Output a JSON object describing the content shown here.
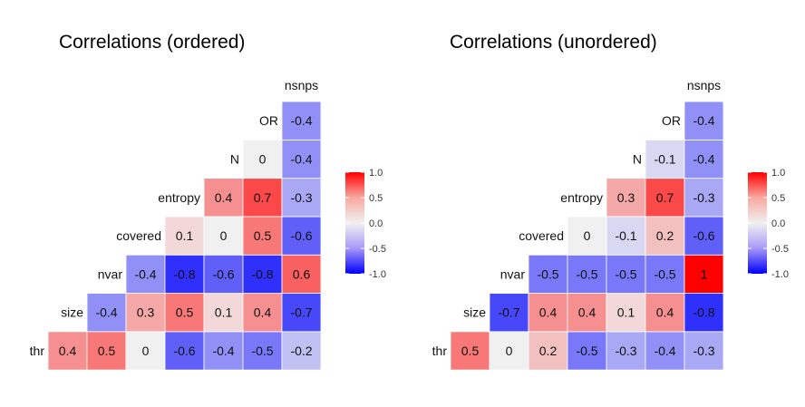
{
  "chart_data": [
    {
      "type": "heatmap",
      "title": "Correlations (ordered)",
      "variables": [
        "thr",
        "size",
        "nvar",
        "covered",
        "entropy",
        "N",
        "OR",
        "nsnps"
      ],
      "matrix": [
        [
          0.4,
          0.5,
          0,
          -0.6,
          -0.4,
          -0.5,
          -0.2
        ],
        [
          -0.4,
          0.3,
          0.5,
          0.1,
          0.4,
          -0.7
        ],
        [
          -0.4,
          -0.8,
          -0.6,
          -0.8,
          0.6
        ],
        [
          0.1,
          0,
          0.5,
          -0.6
        ],
        [
          0.4,
          0.7,
          -0.3
        ],
        [
          0,
          -0.4
        ],
        [
          -0.4
        ]
      ],
      "legend": {
        "ticks": [
          "1.0",
          "0.5",
          "0.0",
          "-0.5",
          "-1.0"
        ],
        "range": [
          -1,
          1
        ],
        "colors": {
          "low": "#0000ff",
          "mid": "#f0f0f0",
          "high": "#ff0000"
        }
      }
    },
    {
      "type": "heatmap",
      "title": "Correlations (unordered)",
      "variables": [
        "thr",
        "size",
        "nvar",
        "covered",
        "entropy",
        "N",
        "OR",
        "nsnps"
      ],
      "matrix": [
        [
          0.5,
          0,
          0.2,
          -0.5,
          -0.3,
          -0.4,
          -0.3
        ],
        [
          -0.7,
          0.4,
          0.4,
          0.1,
          0.4,
          -0.8
        ],
        [
          -0.5,
          -0.5,
          -0.5,
          -0.5,
          1
        ],
        [
          0,
          -0.1,
          0.2,
          -0.6
        ],
        [
          0.3,
          0.7,
          -0.3
        ],
        [
          -0.1,
          -0.4
        ],
        [
          -0.4
        ]
      ],
      "legend": {
        "ticks": [
          "1.0",
          "0.5",
          "0.0",
          "-0.5",
          "-1.0"
        ],
        "range": [
          -1,
          1
        ],
        "colors": {
          "low": "#0000ff",
          "mid": "#f0f0f0",
          "high": "#ff0000"
        }
      }
    }
  ]
}
